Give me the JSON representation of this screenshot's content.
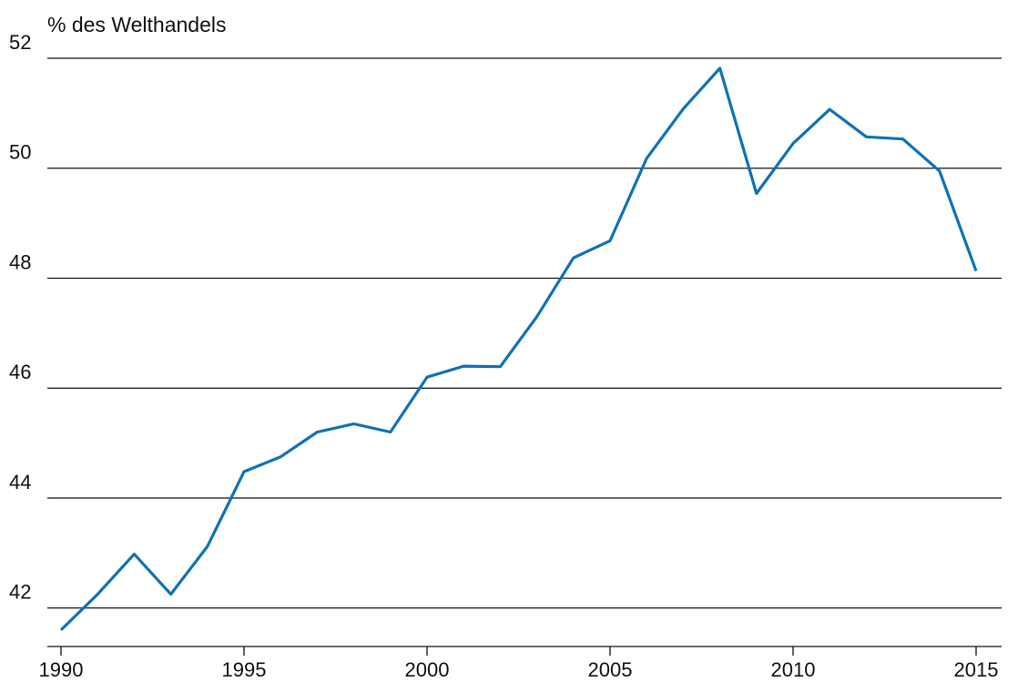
{
  "chart_data": {
    "type": "line",
    "ylabel": "% des Welthandels",
    "xlabel": "",
    "title": "",
    "x": [
      1990,
      1991,
      1992,
      1993,
      1994,
      1995,
      1996,
      1997,
      1998,
      1999,
      2000,
      2001,
      2002,
      2003,
      2004,
      2005,
      2006,
      2007,
      2008,
      2009,
      2010,
      2011,
      2012,
      2013,
      2014,
      2015
    ],
    "series": [
      {
        "values": [
          41.6,
          42.25,
          42.98,
          42.25,
          43.12,
          44.48,
          44.75,
          45.2,
          45.35,
          45.2,
          46.2,
          46.4,
          46.39,
          47.3,
          48.37,
          48.68,
          50.18,
          51.08,
          51.82,
          49.54,
          50.45,
          51.07,
          50.57,
          50.53,
          49.95,
          48.13
        ]
      }
    ],
    "xlim": [
      1990,
      2015
    ],
    "ylim": [
      41.3,
      52
    ],
    "xticks": [
      1990,
      1995,
      2000,
      2005,
      2010,
      2015
    ],
    "yticks": [
      42,
      44,
      46,
      48,
      50,
      52
    ],
    "grid": "horizontal",
    "colors": {
      "line": "#0f72b5",
      "gridline": "#111111",
      "text": "#111111"
    }
  }
}
